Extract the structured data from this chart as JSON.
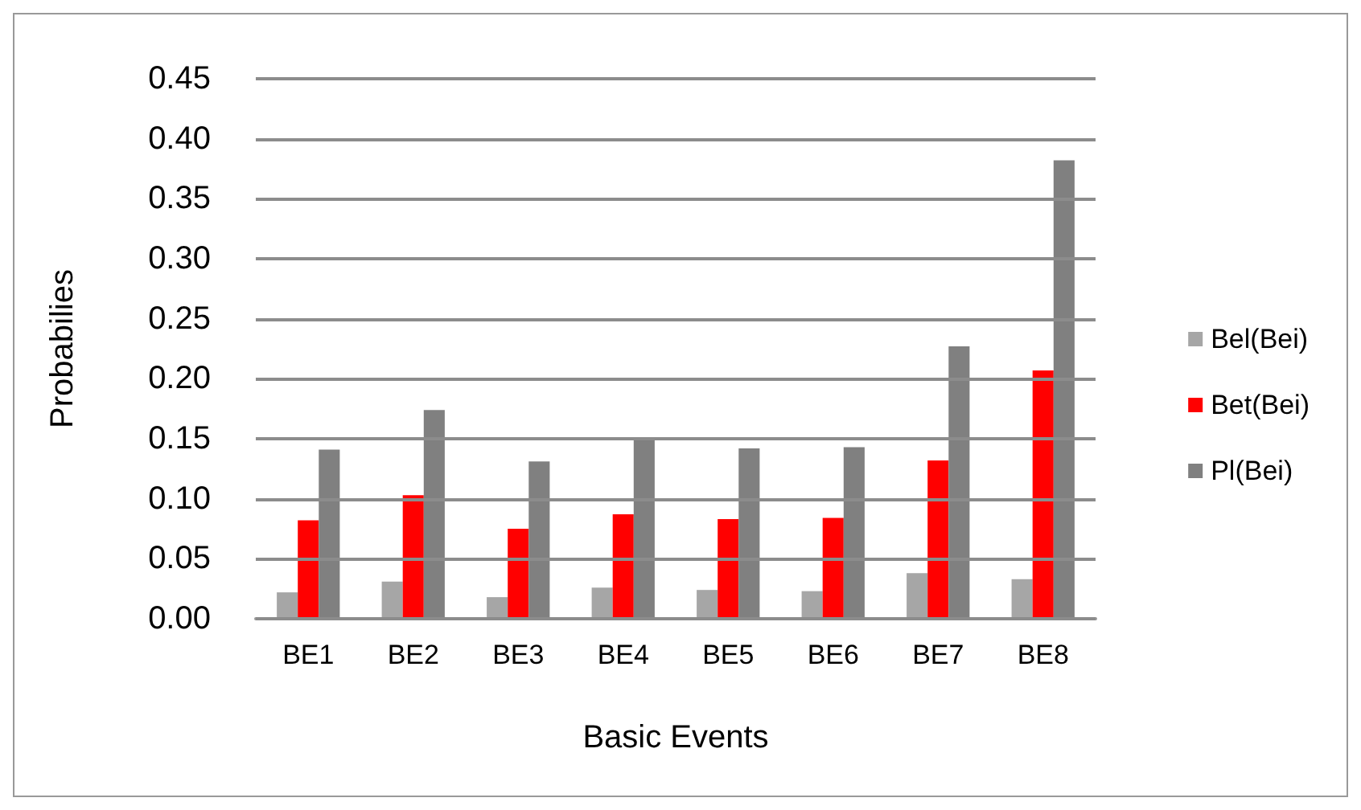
{
  "chart_data": {
    "type": "bar",
    "xlabel": "Basic Events",
    "ylabel": "Probabilies",
    "categories": [
      "BE1",
      "BE2",
      "BE3",
      "BE4",
      "BE5",
      "BE6",
      "BE7",
      "BE8"
    ],
    "series": [
      {
        "name": "Bel(Bei)",
        "color": "#a6a6a6",
        "values": [
          0.022,
          0.031,
          0.018,
          0.026,
          0.024,
          0.023,
          0.038,
          0.033
        ]
      },
      {
        "name": "Bet(Bei)",
        "color": "#ff0000",
        "values": [
          0.082,
          0.103,
          0.075,
          0.087,
          0.083,
          0.084,
          0.132,
          0.207
        ]
      },
      {
        "name": "Pl(Bei)",
        "color": "#808080",
        "values": [
          0.141,
          0.174,
          0.131,
          0.15,
          0.142,
          0.143,
          0.227,
          0.382
        ]
      }
    ],
    "ylim": [
      0,
      0.45
    ],
    "yticks": [
      {
        "value": 0,
        "label": "0.00"
      },
      0.05,
      {
        "value": 0.1,
        "label": "0.10"
      },
      0.15,
      {
        "value": 0.2,
        "label": "0.20"
      },
      0.25,
      {
        "value": 0.3,
        "label": "0.30"
      },
      0.35,
      {
        "value": 0.4,
        "label": "0.40"
      },
      0.45
    ],
    "grid": "y",
    "legend": "right"
  }
}
